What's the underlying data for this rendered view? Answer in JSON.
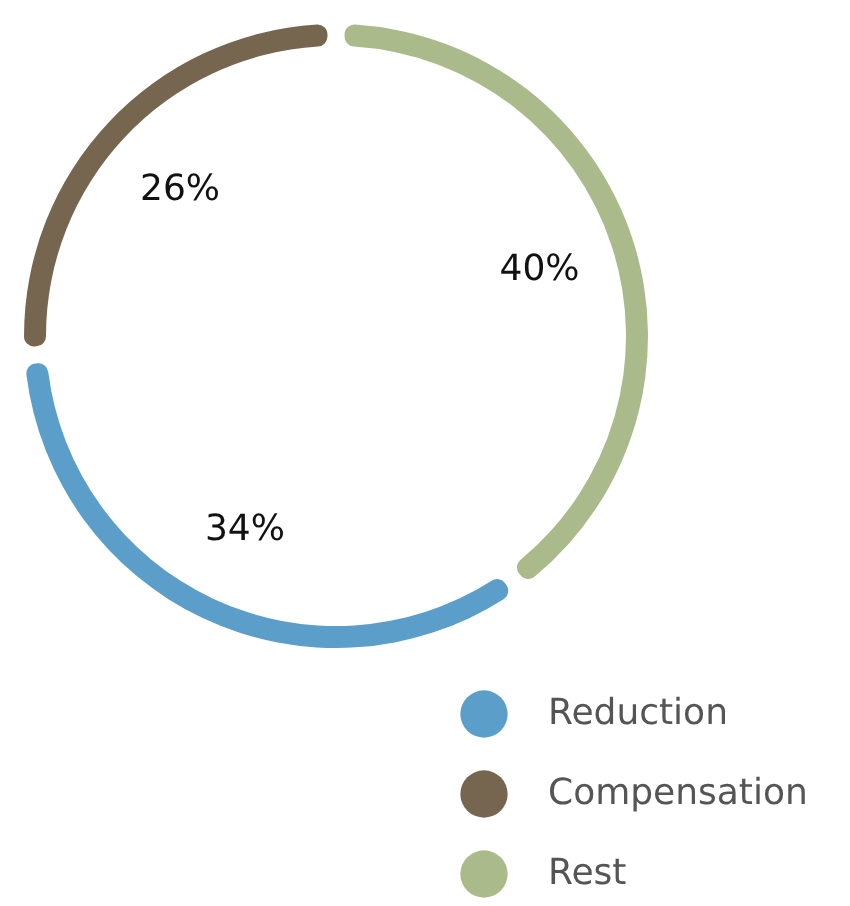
{
  "chart_data": {
    "type": "donut",
    "categories": [
      "Reduction",
      "Compensation",
      "Rest"
    ],
    "values": [
      34,
      26,
      40
    ],
    "colors": [
      "#5a9ec9",
      "#76664f",
      "#abba8a"
    ],
    "value_labels": [
      "34%",
      "26%",
      "40%"
    ],
    "legend": "bottom right"
  }
}
